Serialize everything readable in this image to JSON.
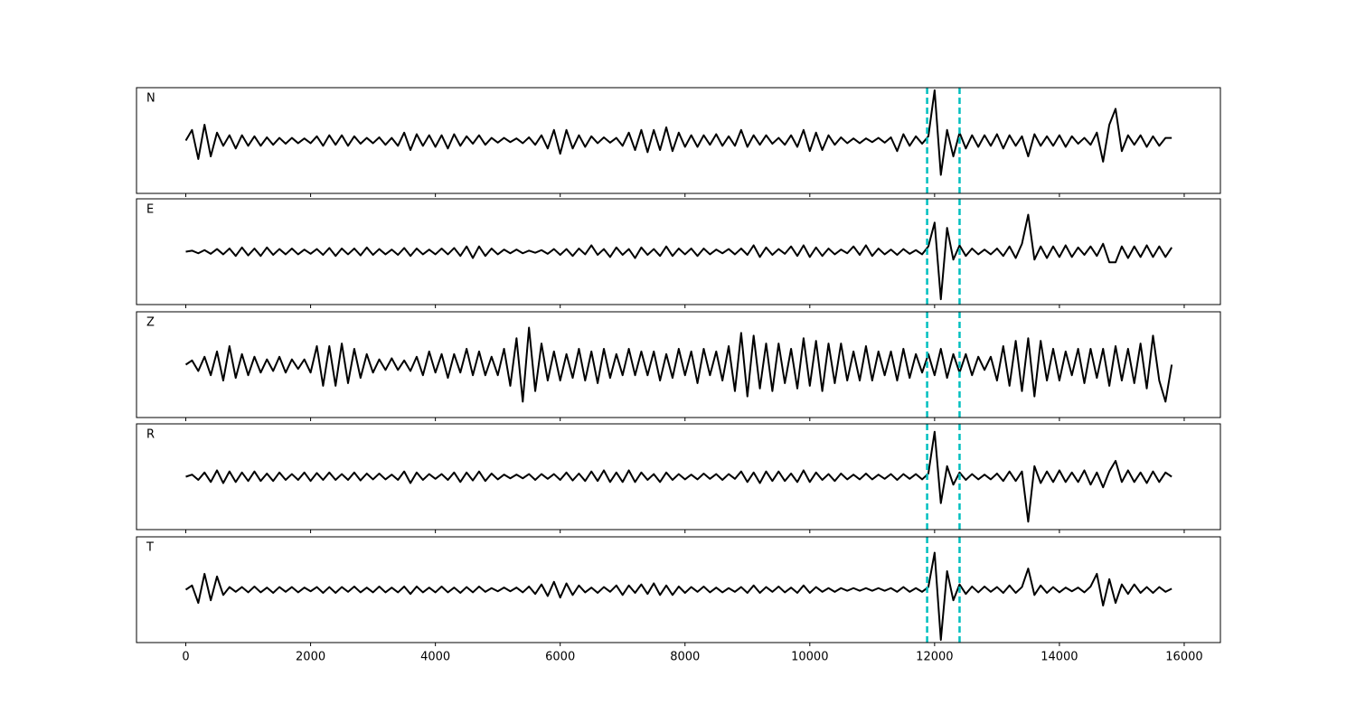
{
  "chart_data": {
    "type": "line",
    "subplots": true,
    "x": [
      0,
      100,
      200,
      300,
      400,
      500,
      600,
      700,
      800,
      900,
      1000,
      1100,
      1200,
      1300,
      1400,
      1500,
      1600,
      1700,
      1800,
      1900,
      2000,
      2100,
      2200,
      2300,
      2400,
      2500,
      2600,
      2700,
      2800,
      2900,
      3000,
      3100,
      3200,
      3300,
      3400,
      3500,
      3600,
      3700,
      3800,
      3900,
      4000,
      4100,
      4200,
      4300,
      4400,
      4500,
      4600,
      4700,
      4800,
      4900,
      5000,
      5100,
      5200,
      5300,
      5400,
      5500,
      5600,
      5700,
      5800,
      5900,
      6000,
      6100,
      6200,
      6300,
      6400,
      6500,
      6600,
      6700,
      6800,
      6900,
      7000,
      7100,
      7200,
      7300,
      7400,
      7500,
      7600,
      7700,
      7800,
      7900,
      8000,
      8100,
      8200,
      8300,
      8400,
      8500,
      8600,
      8700,
      8800,
      8900,
      9000,
      9100,
      9200,
      9300,
      9400,
      9500,
      9600,
      9700,
      9800,
      9900,
      10000,
      10100,
      10200,
      10300,
      10400,
      10500,
      10600,
      10700,
      10800,
      10900,
      11000,
      11100,
      11200,
      11300,
      11400,
      11500,
      11600,
      11700,
      11800,
      11900,
      12000,
      12100,
      12200,
      12300,
      12400,
      12500,
      12600,
      12700,
      12800,
      12900,
      13000,
      13100,
      13200,
      13300,
      13400,
      13500,
      13600,
      13700,
      13800,
      13900,
      14000,
      14100,
      14200,
      14300,
      14400,
      14500,
      14600,
      14700,
      14800,
      14900,
      15000,
      15100,
      15200,
      15300,
      15400,
      15500,
      15600,
      15700,
      15800
    ],
    "series": [
      {
        "name": "N",
        "color": "#000000",
        "values": [
          0,
          0.2,
          -0.35,
          0.3,
          -0.3,
          0.15,
          -0.1,
          0.1,
          -0.15,
          0.1,
          -0.1,
          0.08,
          -0.1,
          0.06,
          -0.08,
          0.05,
          -0.06,
          0.05,
          -0.05,
          0.04,
          -0.05,
          0.08,
          -0.1,
          0.1,
          -0.08,
          0.1,
          -0.1,
          0.08,
          -0.06,
          0.05,
          -0.05,
          0.06,
          -0.08,
          0.05,
          -0.1,
          0.15,
          -0.18,
          0.12,
          -0.1,
          0.1,
          -0.12,
          0.1,
          -0.15,
          0.12,
          -0.1,
          0.08,
          -0.06,
          0.1,
          -0.08,
          0.05,
          -0.04,
          0.05,
          -0.03,
          0.04,
          -0.05,
          0.06,
          -0.08,
          0.1,
          -0.15,
          0.2,
          -0.25,
          0.2,
          -0.15,
          0.1,
          -0.12,
          0.08,
          -0.05,
          0.06,
          -0.04,
          0.05,
          -0.1,
          0.15,
          -0.18,
          0.2,
          -0.22,
          0.2,
          -0.18,
          0.25,
          -0.2,
          0.15,
          -0.12,
          0.1,
          -0.12,
          0.1,
          -0.08,
          0.12,
          -0.1,
          0.08,
          -0.1,
          0.2,
          -0.12,
          0.1,
          -0.08,
          0.1,
          -0.06,
          0.05,
          -0.08,
          0.1,
          -0.12,
          0.2,
          -0.2,
          0.15,
          -0.18,
          0.1,
          -0.08,
          0.06,
          -0.05,
          0.04,
          -0.05,
          0.04,
          -0.03,
          0.05,
          -0.04,
          0.06,
          -0.2,
          0.12,
          -0.1,
          0.08,
          -0.06,
          0.08,
          0.95,
          -0.65,
          0.2,
          -0.3,
          0.15,
          -0.15,
          0.1,
          -0.12,
          0.1,
          -0.1,
          0.12,
          -0.15,
          0.1,
          -0.1,
          0.08,
          -0.3,
          0.12,
          -0.1,
          0.08,
          -0.1,
          0.1,
          -0.12,
          0.08,
          -0.06,
          0.05,
          -0.08,
          0.15,
          -0.4,
          0.3,
          0.6,
          -0.2,
          0.1,
          -0.08,
          0.1,
          -0.12,
          0.08,
          -0.1,
          0.05,
          0.05
        ]
      },
      {
        "name": "E",
        "color": "#000000",
        "values": [
          0,
          0.02,
          -0.03,
          0.03,
          -0.04,
          0.05,
          -0.05,
          0.06,
          -0.08,
          0.08,
          -0.07,
          0.06,
          -0.08,
          0.08,
          -0.06,
          0.05,
          -0.05,
          0.06,
          -0.05,
          0.04,
          -0.04,
          0.05,
          -0.06,
          0.07,
          -0.08,
          0.06,
          -0.05,
          0.06,
          -0.07,
          0.08,
          -0.06,
          0.05,
          -0.05,
          0.04,
          -0.06,
          0.07,
          -0.08,
          0.06,
          -0.05,
          0.04,
          -0.05,
          0.06,
          -0.05,
          0.07,
          -0.08,
          0.1,
          -0.12,
          0.1,
          -0.08,
          0.06,
          -0.05,
          0.04,
          -0.03,
          0.04,
          -0.03,
          0.02,
          -0.02,
          0.03,
          -0.04,
          0.05,
          -0.06,
          0.05,
          -0.08,
          0.06,
          -0.05,
          0.12,
          -0.06,
          0.05,
          -0.1,
          0.08,
          -0.06,
          0.05,
          -0.12,
          0.08,
          -0.06,
          0.05,
          -0.08,
          0.1,
          -0.08,
          0.06,
          -0.05,
          0.06,
          -0.08,
          0.06,
          -0.05,
          0.04,
          -0.03,
          0.05,
          -0.05,
          0.06,
          -0.06,
          0.12,
          -0.1,
          0.08,
          -0.06,
          0.05,
          -0.04,
          0.1,
          -0.08,
          0.12,
          -0.1,
          0.08,
          -0.08,
          0.06,
          -0.05,
          0.04,
          -0.03,
          0.1,
          -0.06,
          0.12,
          -0.08,
          0.06,
          -0.05,
          0.04,
          -0.06,
          0.05,
          -0.04,
          0.03,
          -0.05,
          0.1,
          0.55,
          -0.9,
          0.45,
          -0.15,
          0.12,
          -0.08,
          0.06,
          -0.05,
          0.04,
          -0.05,
          0.06,
          -0.08,
          0.1,
          -0.12,
          0.15,
          0.7,
          -0.15,
          0.1,
          -0.12,
          0.1,
          -0.1,
          0.12,
          -0.1,
          0.08,
          -0.06,
          0.1,
          -0.08,
          0.15,
          -0.2,
          -0.2,
          0.1,
          -0.12,
          0.1,
          -0.1,
          0.12,
          -0.1,
          0.1,
          -0.1,
          0.08
        ]
      },
      {
        "name": "Z",
        "color": "#000000",
        "values": [
          0,
          0.08,
          -0.12,
          0.15,
          -0.2,
          0.25,
          -0.3,
          0.35,
          -0.25,
          0.2,
          -0.2,
          0.15,
          -0.15,
          0.1,
          -0.12,
          0.15,
          -0.15,
          0.1,
          -0.08,
          0.1,
          -0.15,
          0.35,
          -0.4,
          0.35,
          -0.4,
          0.4,
          -0.35,
          0.3,
          -0.25,
          0.2,
          -0.15,
          0.1,
          -0.1,
          0.12,
          -0.1,
          0.08,
          -0.12,
          0.15,
          -0.2,
          0.25,
          -0.15,
          0.2,
          -0.25,
          0.2,
          -0.15,
          0.3,
          -0.2,
          0.25,
          -0.2,
          0.15,
          -0.2,
          0.3,
          -0.4,
          0.5,
          -0.7,
          0.7,
          -0.5,
          0.4,
          -0.3,
          0.25,
          -0.3,
          0.2,
          -0.25,
          0.3,
          -0.3,
          0.25,
          -0.35,
          0.3,
          -0.25,
          0.2,
          -0.2,
          0.3,
          -0.2,
          0.25,
          -0.2,
          0.25,
          -0.3,
          0.2,
          -0.25,
          0.3,
          -0.2,
          0.25,
          -0.35,
          0.3,
          -0.2,
          0.25,
          -0.3,
          0.35,
          -0.5,
          0.6,
          -0.6,
          0.55,
          -0.45,
          0.4,
          -0.5,
          0.4,
          -0.35,
          0.3,
          -0.45,
          0.5,
          -0.4,
          0.45,
          -0.5,
          0.4,
          -0.35,
          0.4,
          -0.3,
          0.25,
          -0.3,
          0.35,
          -0.3,
          0.25,
          -0.2,
          0.25,
          -0.3,
          0.3,
          -0.25,
          0.2,
          -0.15,
          0.2,
          -0.2,
          0.3,
          -0.25,
          0.2,
          -0.15,
          0.2,
          -0.2,
          0.15,
          -0.1,
          0.15,
          -0.3,
          0.35,
          -0.4,
          0.45,
          -0.5,
          0.5,
          -0.6,
          0.45,
          -0.3,
          0.3,
          -0.3,
          0.25,
          -0.2,
          0.3,
          -0.35,
          0.3,
          -0.25,
          0.3,
          -0.4,
          0.35,
          -0.3,
          0.3,
          -0.35,
          0.4,
          -0.45,
          0.55,
          -0.3,
          -0.7,
          0
        ]
      },
      {
        "name": "R",
        "color": "#000000",
        "values": [
          0,
          0.04,
          -0.06,
          0.08,
          -0.1,
          0.12,
          -0.12,
          0.1,
          -0.1,
          0.08,
          -0.08,
          0.1,
          -0.08,
          0.06,
          -0.08,
          0.08,
          -0.06,
          0.05,
          -0.06,
          0.08,
          -0.08,
          0.07,
          -0.06,
          0.08,
          -0.06,
          0.05,
          -0.06,
          0.08,
          -0.07,
          0.06,
          -0.05,
          0.06,
          -0.05,
          0.04,
          -0.06,
          0.1,
          -0.12,
          0.08,
          -0.06,
          0.05,
          -0.04,
          0.05,
          -0.06,
          0.08,
          -0.1,
          0.08,
          -0.07,
          0.1,
          -0.08,
          0.06,
          -0.05,
          0.04,
          -0.03,
          0.04,
          -0.03,
          0.05,
          -0.06,
          0.05,
          -0.04,
          0.05,
          -0.06,
          0.08,
          -0.07,
          0.06,
          -0.08,
          0.1,
          -0.08,
          0.12,
          -0.1,
          0.08,
          -0.1,
          0.12,
          -0.1,
          0.08,
          -0.06,
          0.05,
          -0.1,
          0.08,
          -0.06,
          0.05,
          -0.05,
          0.04,
          -0.05,
          0.06,
          -0.04,
          0.05,
          -0.06,
          0.05,
          -0.04,
          0.1,
          -0.1,
          0.08,
          -0.12,
          0.1,
          -0.08,
          0.1,
          -0.08,
          0.06,
          -0.1,
          0.12,
          -0.1,
          0.08,
          -0.06,
          0.05,
          -0.08,
          0.06,
          -0.05,
          0.04,
          -0.05,
          0.06,
          -0.05,
          0.04,
          -0.04,
          0.05,
          -0.06,
          0.05,
          -0.04,
          0.05,
          -0.05,
          0.06,
          0.85,
          -0.5,
          0.2,
          -0.15,
          0.08,
          -0.06,
          0.05,
          -0.05,
          0.04,
          -0.05,
          0.06,
          -0.08,
          0.1,
          -0.08,
          0.1,
          -0.85,
          0.2,
          -0.12,
          0.1,
          -0.1,
          0.12,
          -0.1,
          0.08,
          -0.1,
          0.12,
          -0.15,
          0.08,
          -0.2,
          0.1,
          0.3,
          -0.1,
          0.12,
          -0.1,
          0.08,
          -0.12,
          0.1,
          -0.1,
          0.08,
          0
        ]
      },
      {
        "name": "T",
        "color": "#000000",
        "values": [
          0,
          0.08,
          -0.25,
          0.3,
          -0.2,
          0.25,
          -0.1,
          0.05,
          -0.04,
          0.05,
          -0.05,
          0.06,
          -0.05,
          0.04,
          -0.06,
          0.05,
          -0.04,
          0.05,
          -0.05,
          0.04,
          -0.03,
          0.05,
          -0.06,
          0.05,
          -0.06,
          0.05,
          -0.04,
          0.06,
          -0.05,
          0.04,
          -0.05,
          0.06,
          -0.05,
          0.04,
          -0.05,
          0.06,
          -0.08,
          0.06,
          -0.05,
          0.04,
          -0.05,
          0.06,
          -0.05,
          0.04,
          -0.06,
          0.05,
          -0.05,
          0.06,
          -0.04,
          0.03,
          -0.03,
          0.04,
          -0.03,
          0.04,
          -0.05,
          0.06,
          -0.08,
          0.1,
          -0.12,
          0.15,
          -0.15,
          0.12,
          -0.1,
          0.08,
          -0.05,
          0.04,
          -0.06,
          0.05,
          -0.04,
          0.08,
          -0.1,
          0.08,
          -0.06,
          0.1,
          -0.08,
          0.12,
          -0.1,
          0.08,
          -0.1,
          0.06,
          -0.06,
          0.05,
          -0.04,
          0.06,
          -0.05,
          0.04,
          -0.05,
          0.03,
          -0.04,
          0.05,
          -0.06,
          0.08,
          -0.06,
          0.05,
          -0.04,
          0.06,
          -0.05,
          0.04,
          -0.06,
          0.08,
          -0.06,
          0.05,
          -0.04,
          0.03,
          -0.04,
          0.03,
          -0.02,
          0.03,
          -0.02,
          0.03,
          -0.02,
          0.03,
          -0.02,
          0.03,
          -0.04,
          0.05,
          -0.04,
          0.03,
          -0.04,
          0.05,
          0.7,
          -0.95,
          0.35,
          -0.2,
          0.1,
          -0.08,
          0.06,
          -0.05,
          0.06,
          -0.04,
          0.05,
          -0.06,
          0.08,
          -0.06,
          0.05,
          0.4,
          -0.1,
          0.08,
          -0.06,
          0.05,
          -0.05,
          0.04,
          -0.03,
          0.04,
          -0.05,
          0.06,
          0.3,
          -0.3,
          0.2,
          -0.25,
          0.1,
          -0.08,
          0.1,
          -0.06,
          0.05,
          -0.06,
          0.05,
          -0.04,
          0.02
        ]
      }
    ],
    "vlines": [
      11880,
      12400
    ],
    "vline_color": "#00bfbf",
    "xlim": [
      -790,
      16580
    ],
    "ylim": [
      -1,
      1
    ],
    "xticks": [
      0,
      2000,
      4000,
      6000,
      8000,
      10000,
      12000,
      14000,
      16000
    ]
  }
}
